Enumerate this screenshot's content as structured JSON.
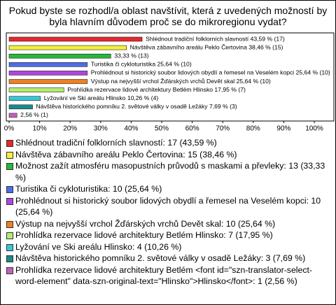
{
  "chart_data": {
    "type": "bar",
    "orientation": "horizontal",
    "title": "Pokud byste se rozhodl/a oblast navštívit, která z uvedených možností by byla hlavním důvodem proč se do mikroregionu vydat?",
    "values": [
      43.59,
      38.46,
      33.33,
      25.64,
      25.64,
      25.64,
      17.95,
      10.26,
      7.69,
      2.56
    ],
    "value_labels": [
      "Shlédnout tradiční folklorních slavností 43,59 % (17)",
      "Návštěva zábavního areálu Peklo Čertovina 38,46 % (15)",
      "33,33 % (13)",
      "Turistika či cykloturistika 25,64 % (10)",
      "Prohlédnout si historický soubor lidových obydlí a řemesel na Veselém kopci 25,64 % (10)",
      "Výstup na nejvyšší vrchol Žďárských vrchů Devět skal 25,64 % (10)",
      "Prohlídka rezervace lidové architektury Betlém Hlinsko 17,95 % (7)",
      "Lyžování ve Ski areálu Hlinsko 10,26 % (4)",
      "Návštěva historického pomníku 2. světové války v osadě Ležáky 7,69 % (3)",
      "2,56 % (1)"
    ],
    "colors": [
      "#e8272b",
      "#f4f03c",
      "#28b63c",
      "#4b6ee8",
      "#b045e0",
      "#f08020",
      "#b4ec70",
      "#38c8d8",
      "#1a8a8a",
      "#c060c0"
    ],
    "legend_labels": [
      "Shlédnout tradiční folklorních slavností: 17 (43,59 %)",
      "Návštěva zábavního areálu Peklo Čertovina: 15 (38,46 %)",
      "Možnost zažít atmosféru masopustních průvodů s maskami a převleky: 13 (33,33 %)",
      "Turistika či cykloturistika: 10 (25,64 %)",
      "Prohlédnout si historický soubor lidových obydlí a řemesel na Veselém kopci: 10 (25,64 %)",
      "Výstup na nejvyšší vrchol Žďárských vrchů Devět skal: 10 (25,64 %)",
      "Prohlídka rezervace lidové architektury Betlém Hlinsko: 7 (17,95 %)",
      "Lyžování ve Ski areálu Hlinsko: 4 (10,26 %)",
      "Návštěva historického pomníku 2. světové války v osadě Ležáky: 3 (7,69 %)",
      "Prohlídka rezervace lidové architektury Betlém <font id=\"szn-translator-select-word-element\" data-szn-original-text=\"Hlinsko\">Hlinsko</font>: 1 (2,56 %)"
    ],
    "xlim": [
      0,
      100
    ],
    "xticks": [
      {
        "value": 0,
        "label": "0%"
      },
      {
        "value": 10,
        "label": "10%"
      },
      {
        "value": 20,
        "label": "20%"
      },
      {
        "value": 30,
        "label": "30%"
      },
      {
        "value": 40,
        "label": "40%"
      },
      {
        "value": 50,
        "label": "50%"
      },
      {
        "value": 60,
        "label": "60%"
      },
      {
        "value": 70,
        "label": "70%"
      },
      {
        "value": 80,
        "label": "80%"
      },
      {
        "value": 90,
        "label": "90%"
      },
      {
        "value": 100,
        "label": "100%"
      }
    ]
  }
}
